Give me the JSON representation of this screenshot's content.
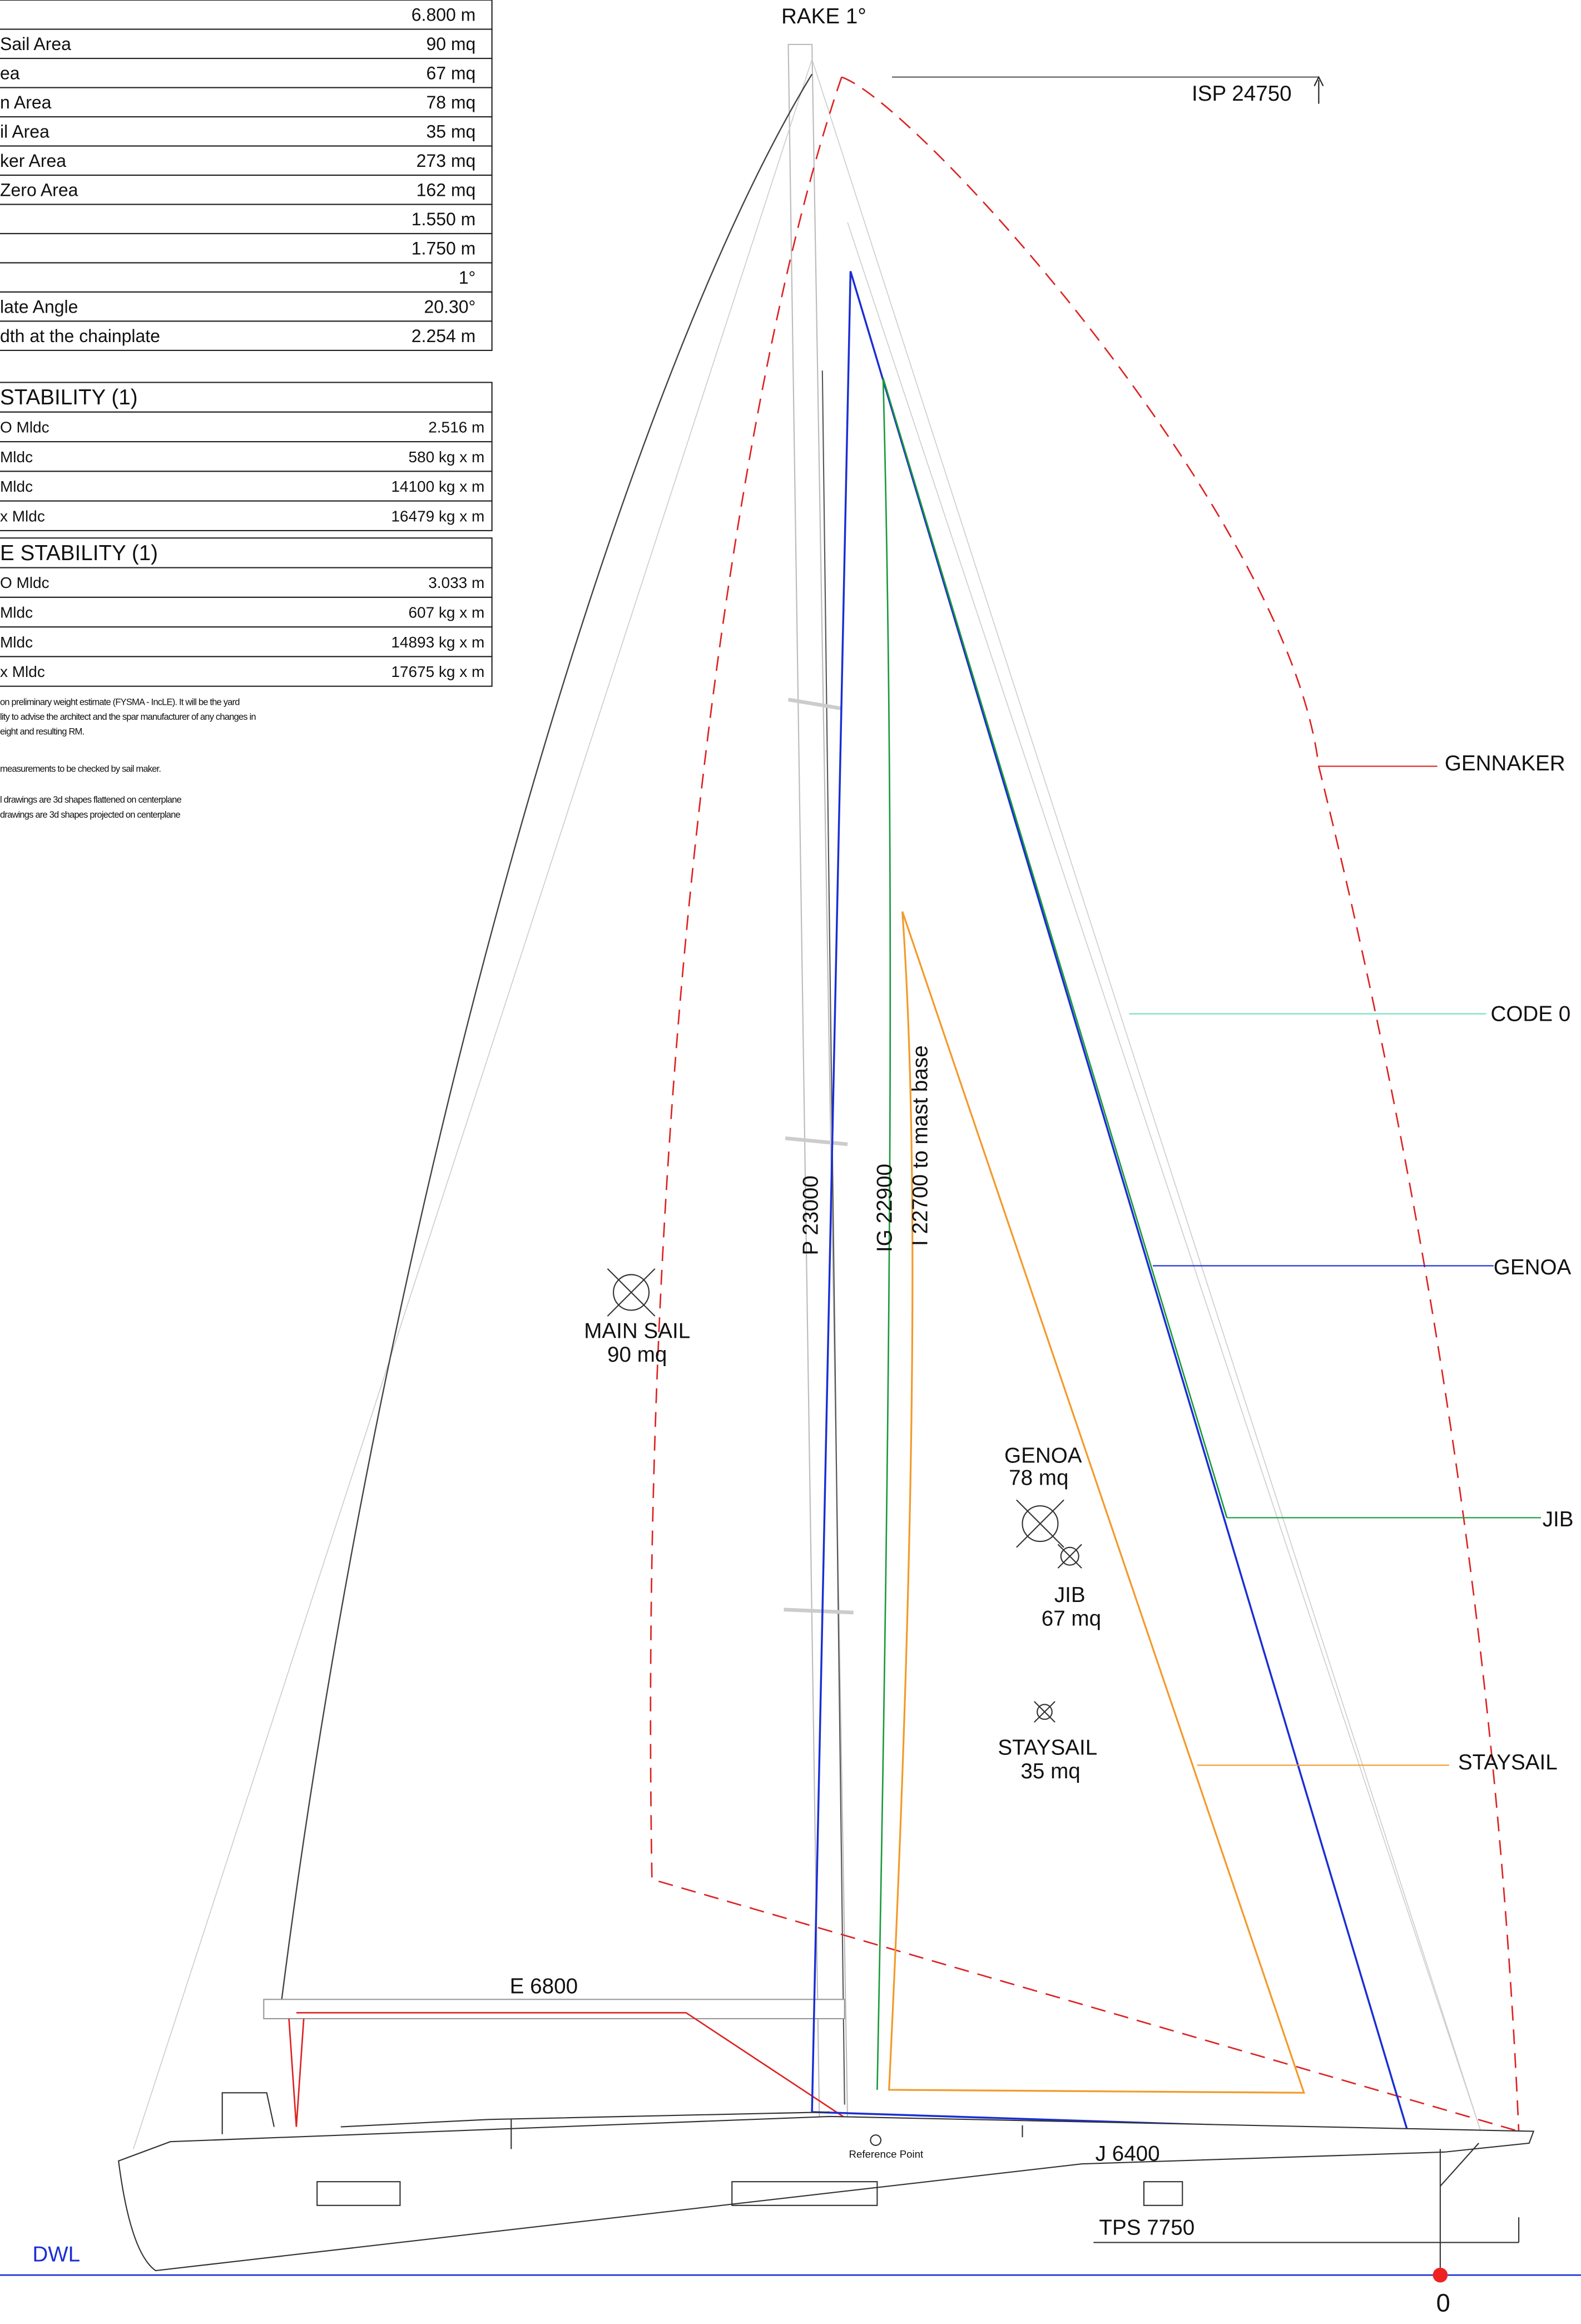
{
  "dimensions_table": {
    "rows": [
      {
        "value": "6.800 m"
      },
      {
        "label": "Sail Area",
        "value": "90 mq"
      },
      {
        "label": "ea",
        "value": "67 mq"
      },
      {
        "label": "n Area",
        "value": "78 mq"
      },
      {
        "label": "il Area",
        "value": "35 mq"
      },
      {
        "label": "ker Area",
        "value": "273 mq"
      },
      {
        "label": "Zero Area",
        "value": "162 mq"
      },
      {
        "value": "1.550 m"
      },
      {
        "value": "1.750 m"
      },
      {
        "value": "1°"
      },
      {
        "label": "late Angle",
        "value": "20.30°"
      },
      {
        "label": "dth at the chainplate",
        "value": "2.254 m"
      }
    ]
  },
  "stability_tables": [
    {
      "title": "STABILITY  (1)",
      "rows": [
        {
          "label": "O Mldc",
          "value": "2.516 m"
        },
        {
          "label": "Mldc",
          "value": "580 kg x m"
        },
        {
          "label": "Mldc",
          "value": "14100 kg x m"
        },
        {
          "label": "x Mldc",
          "value": "16479 kg x m"
        }
      ]
    },
    {
      "title": "E STABILITY  (1)",
      "rows": [
        {
          "label": "O Mldc",
          "value": "3.033 m"
        },
        {
          "label": "Mldc",
          "value": "607 kg x m"
        },
        {
          "label": "Mldc",
          "value": "14893 kg x m"
        },
        {
          "label": "x Mldc",
          "value": "17675 kg x m"
        }
      ]
    }
  ],
  "notes": [
    "on preliminary weight estimate (FYSMA - IncLE). It will be the yard",
    "lity to advise the architect and the spar manufacturer of any changes in",
    "eight and resulting RM.",
    "measurements to be checked by sail maker.",
    "l drawings are 3d shapes flattened on centerplane",
    " drawings are 3d shapes projected on centerplane"
  ],
  "drawing": {
    "rake": "RAKE  1°",
    "isp": "ISP  24750",
    "sail_tags": {
      "gennaker": "GENNAKER",
      "code0": "CODE 0",
      "genoa": "GENOA",
      "jib": "JIB",
      "staysail": "STAYSAIL"
    },
    "p": "P  23000",
    "ig": "IG  22900",
    "i": "I  22700 to mast base",
    "main_sail": {
      "name": "MAIN SAIL",
      "area": "90 mq"
    },
    "genoa": {
      "name": "GENOA",
      "area": "78 mq"
    },
    "jib": {
      "name": "JIB",
      "area": "67 mq"
    },
    "staysail": {
      "name": "STAYSAIL",
      "area": "35 mq"
    },
    "e": "E  6800",
    "j": "J  6400",
    "tps": "TPS  7750",
    "reference_point": "Reference Point",
    "dwl": "DWL",
    "zero": "0"
  }
}
